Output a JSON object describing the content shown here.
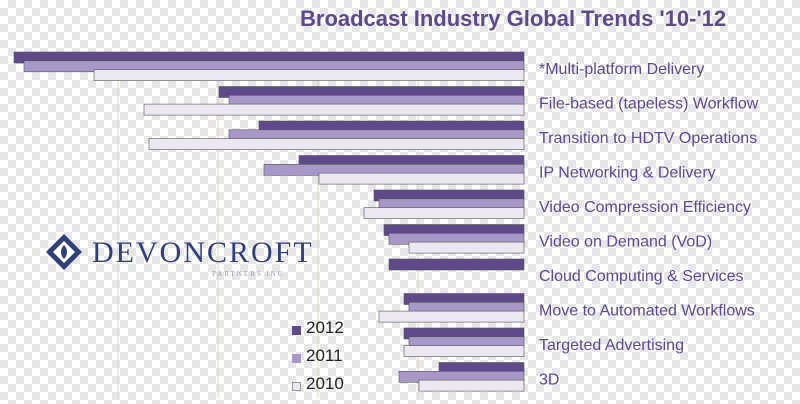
{
  "chart_data": {
    "type": "bar",
    "orientation": "horizontal",
    "title": "Broadcast Industry Global Trends '10-'12",
    "categories": [
      "*Multi-platform Delivery",
      "File-based (tapeless) Workflow",
      "Transition to HDTV Operations",
      "IP Networking & Delivery",
      "Video Compression Efficiency",
      "Video on Demand (VoD)",
      "Cloud Computing & Services",
      "Move to Automated Workflows",
      "Targeted Advertising",
      "3D"
    ],
    "series": [
      {
        "name": "2012",
        "color": "#5e4a8a",
        "values": [
          510,
          305,
          265,
          225,
          150,
          140,
          135,
          120,
          120,
          85
        ]
      },
      {
        "name": "2011",
        "color": "#a898c8",
        "values": [
          500,
          295,
          295,
          260,
          145,
          135,
          null,
          115,
          115,
          125
        ]
      },
      {
        "name": "2010",
        "color": "#ece8f2",
        "values": [
          430,
          380,
          375,
          205,
          160,
          115,
          null,
          145,
          120,
          105
        ]
      }
    ],
    "direction": "bars extend leftward from category labels",
    "legend_position": "bottom-center"
  },
  "legend": {
    "items": [
      {
        "label": "2012",
        "color": "#5e4a8a"
      },
      {
        "label": "2011",
        "color": "#a898c8"
      },
      {
        "label": "2010",
        "color": "#ece8f2"
      }
    ]
  },
  "logo": {
    "name": "DEVONCROFT",
    "tagline": "PARTNERS INC"
  }
}
